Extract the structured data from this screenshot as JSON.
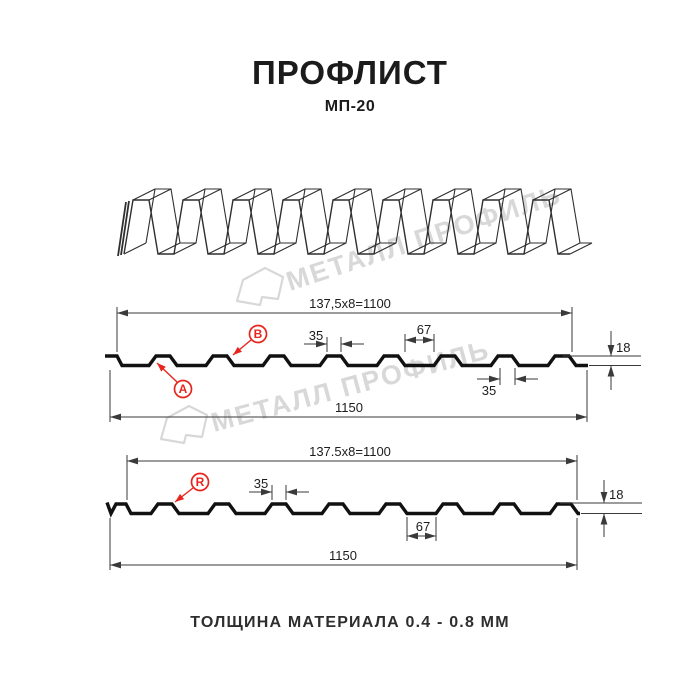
{
  "page": {
    "title": "ПРОФЛИСТ",
    "subtitle": "МП-20",
    "footer": "ТОЛЩИНА МАТЕРИАЛА 0.4 - 0.8 ММ"
  },
  "watermark": {
    "text": "МЕТАЛЛ ПРОФИЛЬ"
  },
  "colors": {
    "red": "#e8251d",
    "ink": "#1b1b1b",
    "line": "#2f2f2f",
    "watermark": "#d8d8d8"
  },
  "diagram": {
    "section1": {
      "dim_pitch": "137,5x8=1100",
      "dim_rib_top_width": "35",
      "dim_rib_bottom_width": "67",
      "dim_height": "18",
      "dim_rib_top_width_lower": "35",
      "dim_overall": "1150",
      "label_a": "A",
      "label_b": "B"
    },
    "section2": {
      "dim_pitch": "137.5x8=1100",
      "dim_rib_top_width": "35",
      "dim_valley_width": "67",
      "dim_height": "18",
      "dim_overall": "1150",
      "label_r": "R"
    }
  }
}
